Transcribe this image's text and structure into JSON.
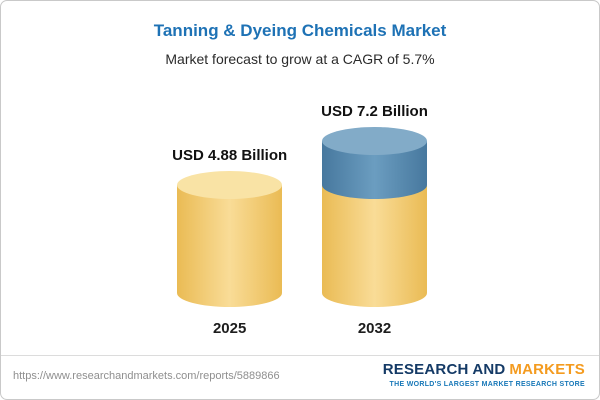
{
  "chart_data": {
    "type": "bar",
    "bar_style": "cylinder",
    "title": "Tanning & Dyeing Chemicals Market",
    "subtitle": "Market forecast to grow at a CAGR of 5.7%",
    "cagr": "5.7%",
    "categories": [
      "2025",
      "2032"
    ],
    "values": [
      4.88,
      7.2
    ],
    "value_labels": [
      "USD 4.88 Billion",
      "USD 7.2 Billion"
    ],
    "unit": "USD Billion",
    "colors": {
      "base": "#F5CD74",
      "growth": "#4E81A8"
    },
    "legend_position": "none",
    "grid": false,
    "notes": "2032 cylinder is stacked: yellow base equals 2025 value (4.88), blue top segment is the growth increment (2.32)"
  },
  "footer": {
    "url": "https://www.researchandmarkets.com/reports/5889866",
    "logo": {
      "text_primary": "RESEARCH AND",
      "text_secondary": "MARKETS",
      "tagline": "THE WORLD'S LARGEST MARKET RESEARCH STORE"
    }
  }
}
